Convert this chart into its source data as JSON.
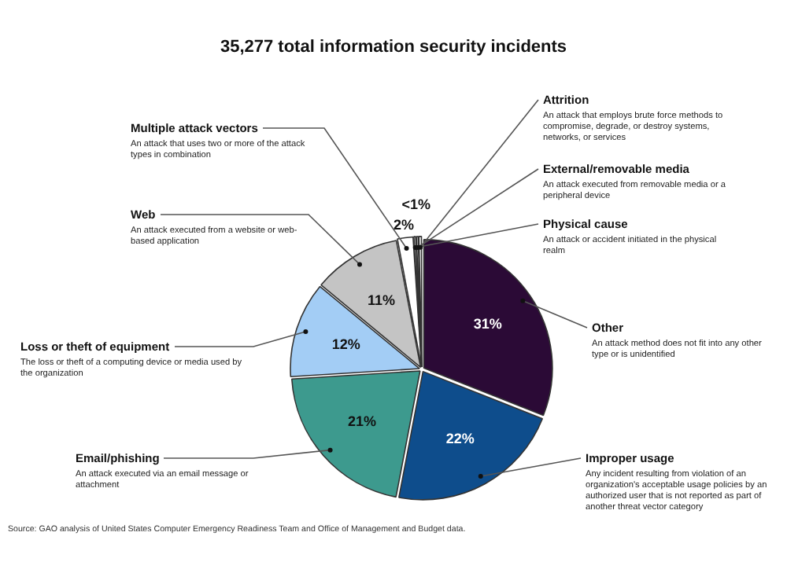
{
  "chart_data": {
    "type": "pie",
    "title": "35,277 total information security incidents",
    "categories": [
      "Other",
      "Improper usage",
      "Email/phishing",
      "Loss or theft of equipment",
      "Web",
      "Multiple attack vectors",
      "Physical cause",
      "External/removable media",
      "Attrition"
    ],
    "values": [
      31,
      22,
      21,
      12,
      11,
      2,
      0.3,
      0.3,
      0.4
    ],
    "colors": [
      "#2b0a36",
      "#0e4d8c",
      "#3d9a8e",
      "#a3cdf5",
      "#c4c4c4",
      "#ffffff",
      "#ffffff",
      "#ffffff",
      "#ffffff"
    ],
    "value_labels": [
      "31%",
      "22%",
      "21%",
      "12%",
      "11%",
      "2%",
      null,
      "<1%",
      null
    ],
    "annotations": [
      "An attack method does not fit into any other type or is unidentified",
      "Any incident resulting from violation of an organization's acceptable usage policies by an authorized user that is not reported as part of another threat vector category",
      "An attack executed via an email message or attachment",
      "The loss or theft of a computing device or media used by the organization",
      "An attack executed from a website or web-based application",
      "An attack that uses two or more of the attack types in combination",
      "An attack or accident initiated in the physical realm",
      "An attack executed from removable media or a peripheral device",
      "An attack that employs brute force methods to compromise, degrade, or destroy systems, networks, or services",
      "Source: GAO analysis of United States Computer Emergency Readiness Team and Office of Management and Budget data."
    ],
    "legend": false
  }
}
